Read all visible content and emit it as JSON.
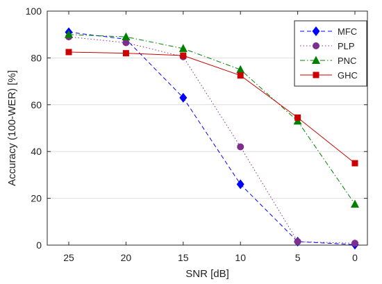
{
  "chart_data": {
    "type": "line",
    "title": "",
    "xlabel": "SNR [dB]",
    "ylabel": "Accuracy (100-WER) [%]",
    "x": [
      25,
      20,
      15,
      10,
      5,
      0
    ],
    "x_tick_labels": [
      "25",
      "20",
      "15",
      "10",
      "5",
      "0"
    ],
    "x_direction": "descending",
    "ylim": [
      0,
      100
    ],
    "y_ticks": [
      0,
      20,
      40,
      60,
      80,
      100
    ],
    "y_tick_labels": [
      "0",
      "20",
      "40",
      "60",
      "80",
      "100"
    ],
    "grid": "horizontal",
    "legend_position": "top-right",
    "series": [
      {
        "name": "MFC",
        "values": [
          91,
          88,
          63,
          26,
          1.5,
          0.2
        ],
        "color": "#0000ff",
        "marker": "diamond",
        "line_style": "dashed"
      },
      {
        "name": "PLP",
        "values": [
          89,
          86.5,
          80.5,
          42,
          1.5,
          0.8
        ],
        "color": "#7e2f8e",
        "marker": "circle",
        "line_style": "dotted"
      },
      {
        "name": "PNC",
        "values": [
          90,
          89,
          84,
          75,
          53,
          17.5
        ],
        "color": "#008000",
        "marker": "triangle",
        "line_style": "dash-dot"
      },
      {
        "name": "GHC",
        "values": [
          82.5,
          82,
          81,
          72.5,
          54.5,
          35
        ],
        "color": "#cc0000",
        "marker": "square",
        "line_style": "solid"
      }
    ]
  }
}
